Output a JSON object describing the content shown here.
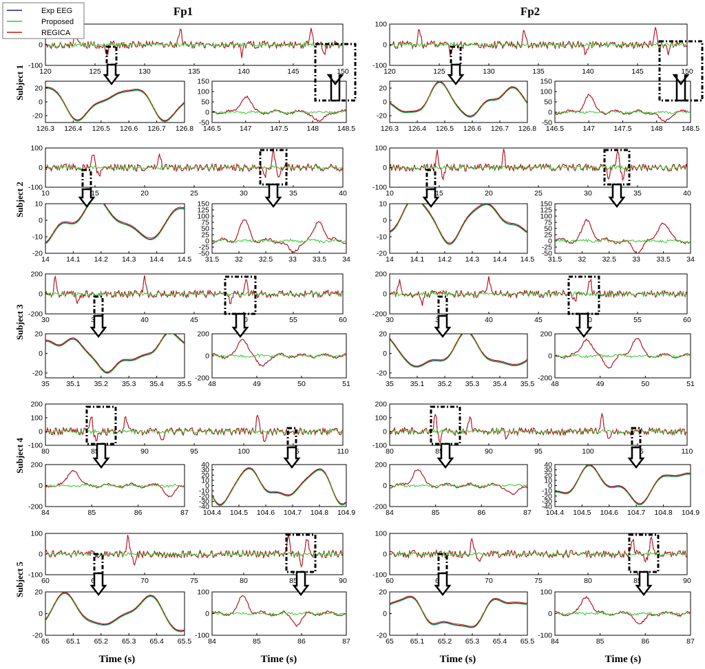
{
  "figure": {
    "column_titles": [
      "Fp1",
      "Fp2"
    ],
    "row_labels": [
      "Subject 1",
      "Subject 2",
      "Subject 3",
      "Subject 4",
      "Subject 5"
    ],
    "xlabel": "Time (s)",
    "legend": [
      {
        "name": "Exp EEG",
        "color": "#1f1f7a"
      },
      {
        "name": "Proposed",
        "color": "#2ecc2e"
      },
      {
        "name": "REGICA",
        "color": "#cc1111"
      }
    ]
  },
  "chart_data": [
    {
      "type": "line",
      "subject": "Subject 1",
      "channel": "Fp1",
      "view": "overview",
      "xlim": [
        120,
        150
      ],
      "ylim": [
        -100,
        100
      ],
      "xticks": [
        120,
        125,
        130,
        135,
        140,
        145,
        150
      ],
      "yticks": [
        -100,
        0,
        100
      ],
      "spikes": [
        123,
        126.2,
        133.6,
        139.8,
        146.8,
        148.1
      ],
      "series": [
        "Exp EEG",
        "Proposed",
        "REGICA"
      ]
    },
    {
      "type": "line",
      "subject": "Subject 1",
      "channel": "Fp1",
      "view": "zoom clean",
      "xlim": [
        126.3,
        126.8
      ],
      "ylim": [
        -30,
        30
      ],
      "xticks": [
        126.3,
        126.4,
        126.5,
        126.6,
        126.7,
        126.8
      ],
      "yticks": [
        -20,
        0,
        20
      ]
    },
    {
      "type": "line",
      "subject": "Subject 1",
      "channel": "Fp1",
      "view": "zoom artifact",
      "xlim": [
        146.5,
        148.5
      ],
      "ylim": [
        -50,
        150
      ],
      "xticks": [
        146.5,
        147,
        147.5,
        148,
        148.5
      ],
      "yticks": [
        -50,
        0,
        50,
        100,
        150
      ],
      "spikes": [
        147,
        148.1
      ]
    },
    {
      "type": "line",
      "subject": "Subject 1",
      "channel": "Fp2",
      "view": "overview",
      "xlim": [
        120,
        150
      ],
      "ylim": [
        -100,
        100
      ],
      "xticks": [
        120,
        125,
        130,
        135,
        140,
        145,
        150
      ],
      "yticks": [
        -100,
        0,
        100
      ],
      "spikes": [
        123,
        126.2,
        133.6,
        139.8,
        146.8,
        148.1
      ]
    },
    {
      "type": "line",
      "subject": "Subject 1",
      "channel": "Fp2",
      "view": "zoom clean",
      "xlim": [
        126.3,
        126.8
      ],
      "ylim": [
        -30,
        30
      ],
      "xticks": [
        126.3,
        126.4,
        126.5,
        126.6,
        126.7,
        126.8
      ],
      "yticks": [
        -20,
        0,
        20
      ]
    },
    {
      "type": "line",
      "subject": "Subject 1",
      "channel": "Fp2",
      "view": "zoom artifact",
      "xlim": [
        146.5,
        148.5
      ],
      "ylim": [
        -50,
        150
      ],
      "xticks": [
        146.5,
        147,
        147.5,
        148,
        148.5
      ],
      "yticks": [
        -50,
        0,
        50,
        100,
        150
      ],
      "spikes": [
        147,
        148.1
      ]
    },
    {
      "type": "line",
      "subject": "Subject 2",
      "channel": "Fp1",
      "view": "overview",
      "xlim": [
        10,
        40
      ],
      "ylim": [
        -100,
        100
      ],
      "xticks": [
        10,
        15,
        20,
        25,
        30,
        35,
        40
      ],
      "yticks": [
        -100,
        0,
        100
      ],
      "spikes": [
        14.8,
        15.4,
        21.5,
        32.1,
        33,
        33.5
      ]
    },
    {
      "type": "line",
      "subject": "Subject 2",
      "channel": "Fp1",
      "view": "zoom clean",
      "xlim": [
        14,
        14.5
      ],
      "ylim": [
        -20,
        10
      ],
      "xticks": [
        14,
        14.1,
        14.2,
        14.3,
        14.4,
        14.5
      ],
      "yticks": [
        -20,
        -10,
        0,
        10
      ]
    },
    {
      "type": "line",
      "subject": "Subject 2",
      "channel": "Fp1",
      "view": "zoom artifact",
      "xlim": [
        31.5,
        34
      ],
      "ylim": [
        -50,
        150
      ],
      "xticks": [
        31.5,
        32,
        32.5,
        33,
        33.5,
        34
      ],
      "yticks": [
        -50,
        -25,
        0,
        25,
        50,
        75,
        100,
        125,
        150
      ],
      "spikes": [
        32.1,
        33,
        33.5
      ]
    },
    {
      "type": "line",
      "subject": "Subject 2",
      "channel": "Fp2",
      "view": "overview",
      "xlim": [
        10,
        40
      ],
      "ylim": [
        -100,
        100
      ],
      "xticks": [
        10,
        15,
        20,
        25,
        30,
        35,
        40
      ],
      "yticks": [
        -100,
        0,
        100
      ],
      "spikes": [
        14.8,
        15.4,
        21.5,
        32.1,
        33,
        33.5
      ]
    },
    {
      "type": "line",
      "subject": "Subject 2",
      "channel": "Fp2",
      "view": "zoom clean",
      "xlim": [
        14,
        14.5
      ],
      "ylim": [
        -20,
        10
      ],
      "xticks": [
        14,
        14.1,
        14.2,
        14.3,
        14.4,
        14.5
      ],
      "yticks": [
        -20,
        -10,
        0,
        10
      ]
    },
    {
      "type": "line",
      "subject": "Subject 2",
      "channel": "Fp2",
      "view": "zoom artifact",
      "xlim": [
        31.5,
        34
      ],
      "ylim": [
        -50,
        150
      ],
      "xticks": [
        31.5,
        32,
        32.5,
        33,
        33.5,
        34
      ],
      "yticks": [
        -50,
        -25,
        0,
        25,
        50,
        75,
        100,
        125,
        150
      ],
      "spikes": [
        32.1,
        33,
        33.5
      ]
    },
    {
      "type": "line",
      "subject": "Subject 3",
      "channel": "Fp1",
      "view": "overview",
      "xlim": [
        30,
        60
      ],
      "ylim": [
        -200,
        200
      ],
      "xticks": [
        30,
        35,
        40,
        45,
        50,
        55,
        60
      ],
      "yticks": [
        -200,
        0,
        200
      ],
      "spikes": [
        31,
        33.3,
        40,
        48.7,
        50.2
      ]
    },
    {
      "type": "line",
      "subject": "Subject 3",
      "channel": "Fp1",
      "view": "zoom clean",
      "xlim": [
        35,
        35.5
      ],
      "ylim": [
        -25,
        20
      ],
      "xticks": [
        35,
        35.1,
        35.2,
        35.3,
        35.4,
        35.5
      ],
      "yticks": [
        -20,
        0,
        20
      ]
    },
    {
      "type": "line",
      "subject": "Subject 3",
      "channel": "Fp1",
      "view": "zoom artifact",
      "xlim": [
        48,
        51
      ],
      "ylim": [
        -200,
        200
      ],
      "xticks": [
        48,
        49,
        50,
        51
      ],
      "yticks": [
        -200,
        0,
        200
      ],
      "spikes": [
        48.7,
        49.1
      ]
    },
    {
      "type": "line",
      "subject": "Subject 3",
      "channel": "Fp2",
      "view": "overview",
      "xlim": [
        30,
        60
      ],
      "ylim": [
        -200,
        200
      ],
      "xticks": [
        30,
        35,
        40,
        45,
        50,
        55,
        60
      ],
      "yticks": [
        -200,
        0,
        200
      ],
      "spikes": [
        31,
        33.3,
        40,
        48.7,
        50.2
      ]
    },
    {
      "type": "line",
      "subject": "Subject 3",
      "channel": "Fp2",
      "view": "zoom clean",
      "xlim": [
        35,
        35.5
      ],
      "ylim": [
        -25,
        20
      ],
      "xticks": [
        35,
        35.1,
        35.2,
        35.3,
        35.4,
        35.5
      ],
      "yticks": [
        -20,
        0,
        20
      ]
    },
    {
      "type": "line",
      "subject": "Subject 3",
      "channel": "Fp2",
      "view": "zoom artifact",
      "xlim": [
        48,
        51
      ],
      "ylim": [
        -200,
        200
      ],
      "xticks": [
        48,
        49,
        50,
        51
      ],
      "yticks": [
        -200,
        0,
        200
      ],
      "spikes": [
        48.7,
        49.2,
        49.8
      ]
    },
    {
      "type": "line",
      "subject": "Subject 4",
      "channel": "Fp1",
      "view": "overview",
      "xlim": [
        80,
        110
      ],
      "ylim": [
        -100,
        200
      ],
      "xticks": [
        80,
        85,
        90,
        95,
        100,
        105,
        110
      ],
      "yticks": [
        -100,
        0,
        100,
        200
      ],
      "spikes": [
        84.6,
        85.1,
        88.1,
        91.8,
        101.4,
        102.1
      ]
    },
    {
      "type": "line",
      "subject": "Subject 4",
      "channel": "Fp1",
      "view": "zoom artifact",
      "xlim": [
        84,
        87
      ],
      "ylim": [
        -200,
        200
      ],
      "xticks": [
        84,
        85,
        86,
        87
      ],
      "yticks": [
        -200,
        0,
        200
      ],
      "spikes": [
        84.6,
        86.7
      ]
    },
    {
      "type": "line",
      "subject": "Subject 4",
      "channel": "Fp1",
      "view": "zoom clean",
      "xlim": [
        104.4,
        104.9
      ],
      "ylim": [
        -40,
        40
      ],
      "xticks": [
        104.4,
        104.5,
        104.6,
        104.7,
        104.8,
        104.9
      ],
      "yticks": [
        -40,
        -30,
        -20,
        -10,
        0,
        10,
        20,
        30,
        40
      ]
    },
    {
      "type": "line",
      "subject": "Subject 4",
      "channel": "Fp2",
      "view": "overview",
      "xlim": [
        80,
        110
      ],
      "ylim": [
        -100,
        200
      ],
      "xticks": [
        80,
        85,
        90,
        95,
        100,
        105,
        110
      ],
      "yticks": [
        -100,
        0,
        100,
        200
      ],
      "spikes": [
        84.6,
        85.1,
        88.1,
        91.8,
        101.4,
        102.1
      ]
    },
    {
      "type": "line",
      "subject": "Subject 4",
      "channel": "Fp2",
      "view": "zoom artifact",
      "xlim": [
        84,
        87
      ],
      "ylim": [
        -200,
        200
      ],
      "xticks": [
        84,
        85,
        86,
        87
      ],
      "yticks": [
        -200,
        0,
        200
      ],
      "spikes": [
        84.6,
        86.7
      ]
    },
    {
      "type": "line",
      "subject": "Subject 4",
      "channel": "Fp2",
      "view": "zoom clean",
      "xlim": [
        104.4,
        104.9
      ],
      "ylim": [
        -40,
        40
      ],
      "xticks": [
        104.4,
        104.5,
        104.6,
        104.7,
        104.8,
        104.9
      ],
      "yticks": [
        -40,
        -30,
        -20,
        -10,
        0,
        10,
        20,
        30,
        40
      ]
    },
    {
      "type": "line",
      "subject": "Subject 5",
      "channel": "Fp1",
      "view": "overview",
      "xlim": [
        60,
        90
      ],
      "ylim": [
        -100,
        100
      ],
      "xticks": [
        60,
        65,
        70,
        75,
        80,
        85,
        90
      ],
      "yticks": [
        -100,
        0,
        100
      ],
      "spikes": [
        68.3,
        69,
        84.5,
        85.8,
        86.4
      ]
    },
    {
      "type": "line",
      "subject": "Subject 5",
      "channel": "Fp1",
      "view": "zoom clean",
      "xlim": [
        65,
        65.5
      ],
      "ylim": [
        -20,
        20
      ],
      "xticks": [
        65,
        65.1,
        65.2,
        65.3,
        65.4,
        65.5
      ],
      "yticks": [
        -20,
        0,
        20
      ]
    },
    {
      "type": "line",
      "subject": "Subject 5",
      "channel": "Fp1",
      "view": "zoom artifact",
      "xlim": [
        84,
        87
      ],
      "ylim": [
        -100,
        100
      ],
      "xticks": [
        84,
        85,
        86,
        87
      ],
      "yticks": [
        -100,
        0,
        100
      ],
      "spikes": [
        84.7,
        85.9
      ]
    },
    {
      "type": "line",
      "subject": "Subject 5",
      "channel": "Fp2",
      "view": "overview",
      "xlim": [
        60,
        90
      ],
      "ylim": [
        -100,
        100
      ],
      "xticks": [
        60,
        65,
        70,
        75,
        80,
        85,
        90
      ],
      "yticks": [
        -100,
        0,
        100
      ],
      "spikes": [
        68.3,
        69,
        84.5,
        85.8,
        86.4
      ]
    },
    {
      "type": "line",
      "subject": "Subject 5",
      "channel": "Fp2",
      "view": "zoom clean",
      "xlim": [
        65,
        65.5
      ],
      "ylim": [
        -20,
        20
      ],
      "xticks": [
        65,
        65.1,
        65.2,
        65.3,
        65.4,
        65.5
      ],
      "yticks": [
        -20,
        0,
        20
      ]
    },
    {
      "type": "line",
      "subject": "Subject 5",
      "channel": "Fp2",
      "view": "zoom artifact",
      "xlim": [
        84,
        87
      ],
      "ylim": [
        -100,
        100
      ],
      "xticks": [
        84,
        85,
        86,
        87
      ],
      "yticks": [
        -100,
        0,
        100
      ],
      "spikes": [
        84.7,
        85.9
      ]
    }
  ]
}
